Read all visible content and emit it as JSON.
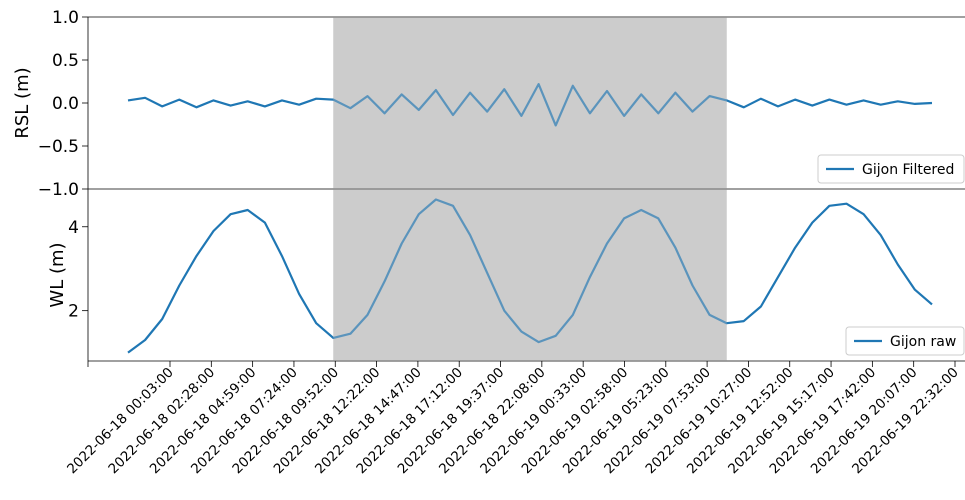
{
  "chart_data": [
    {
      "type": "line",
      "ylabel": "RSL (m)",
      "ylim": [
        -1.0,
        1.0
      ],
      "y_ticks": [
        1.0,
        0.5,
        0.0,
        -0.5,
        -1.0
      ],
      "y_tick_labels": [
        "1.0",
        "0.5",
        "0.0",
        "−0.5",
        "−1.0"
      ],
      "legend": "bottom-right",
      "grid": false,
      "series": [
        {
          "name": "Gijon Filtered",
          "color": "#1f77b4",
          "x_hours": [
            0,
            1,
            2,
            3,
            4,
            5,
            6,
            7,
            8,
            9,
            10,
            11,
            12,
            13,
            14,
            15,
            16,
            17,
            18,
            19,
            20,
            21,
            22,
            23,
            24,
            25,
            26,
            27,
            28,
            29,
            30,
            31,
            32,
            33,
            34,
            35,
            36,
            37,
            38,
            39,
            40,
            41,
            42,
            43,
            44,
            45,
            46,
            47
          ],
          "y": [
            0.03,
            0.06,
            -0.04,
            0.04,
            -0.05,
            0.03,
            -0.03,
            0.02,
            -0.04,
            0.03,
            -0.02,
            0.05,
            0.04,
            -0.06,
            0.08,
            -0.12,
            0.1,
            -0.08,
            0.15,
            -0.14,
            0.12,
            -0.1,
            0.16,
            -0.15,
            0.22,
            -0.26,
            0.2,
            -0.12,
            0.14,
            -0.15,
            0.1,
            -0.12,
            0.12,
            -0.1,
            0.08,
            0.03,
            -0.05,
            0.05,
            -0.04,
            0.04,
            -0.03,
            0.04,
            -0.02,
            0.03,
            -0.02,
            0.02,
            -0.01,
            0.0
          ]
        }
      ]
    },
    {
      "type": "line",
      "ylabel": "WL (m)",
      "ylim": [
        0.8,
        4.9
      ],
      "y_ticks": [
        4,
        2
      ],
      "y_tick_labels": [
        "4",
        "2"
      ],
      "legend": "bottom-right",
      "grid": false,
      "x_tick_labels": [
        "2022-06-18 00:03:00",
        "2022-06-18 02:28:00",
        "2022-06-18 04:59:00",
        "2022-06-18 07:24:00",
        "2022-06-18 09:52:00",
        "2022-06-18 12:22:00",
        "2022-06-18 14:47:00",
        "2022-06-18 17:12:00",
        "2022-06-18 19:37:00",
        "2022-06-18 22:08:00",
        "2022-06-19 00:33:00",
        "2022-06-19 02:58:00",
        "2022-06-19 05:23:00",
        "2022-06-19 07:53:00",
        "2022-06-19 10:27:00",
        "2022-06-19 12:52:00",
        "2022-06-19 15:17:00",
        "2022-06-19 17:42:00",
        "2022-06-19 20:07:00",
        "2022-06-19 22:32:00"
      ],
      "series": [
        {
          "name": "Gijon raw",
          "color": "#1f77b4",
          "x_hours": [
            0,
            1,
            2,
            3,
            4,
            5,
            6,
            7,
            8,
            9,
            10,
            11,
            12,
            13,
            14,
            15,
            16,
            17,
            18,
            19,
            20,
            21,
            22,
            23,
            24,
            25,
            26,
            27,
            28,
            29,
            30,
            31,
            32,
            33,
            34,
            35,
            36,
            37,
            38,
            39,
            40,
            41,
            42,
            43,
            44,
            45,
            46,
            47
          ],
          "y": [
            1.0,
            1.3,
            1.8,
            2.6,
            3.3,
            3.9,
            4.3,
            4.4,
            4.1,
            3.3,
            2.4,
            1.7,
            1.35,
            1.45,
            1.9,
            2.7,
            3.6,
            4.3,
            4.65,
            4.5,
            3.8,
            2.9,
            2.0,
            1.5,
            1.25,
            1.4,
            1.9,
            2.8,
            3.6,
            4.2,
            4.4,
            4.2,
            3.5,
            2.6,
            1.9,
            1.7,
            1.75,
            2.1,
            2.8,
            3.5,
            4.1,
            4.5,
            4.55,
            4.3,
            3.8,
            3.1,
            2.5,
            2.15
          ]
        }
      ]
    }
  ],
  "shaded_region_hours": [
    12,
    35
  ],
  "shaded_region_color": "#cccccc"
}
